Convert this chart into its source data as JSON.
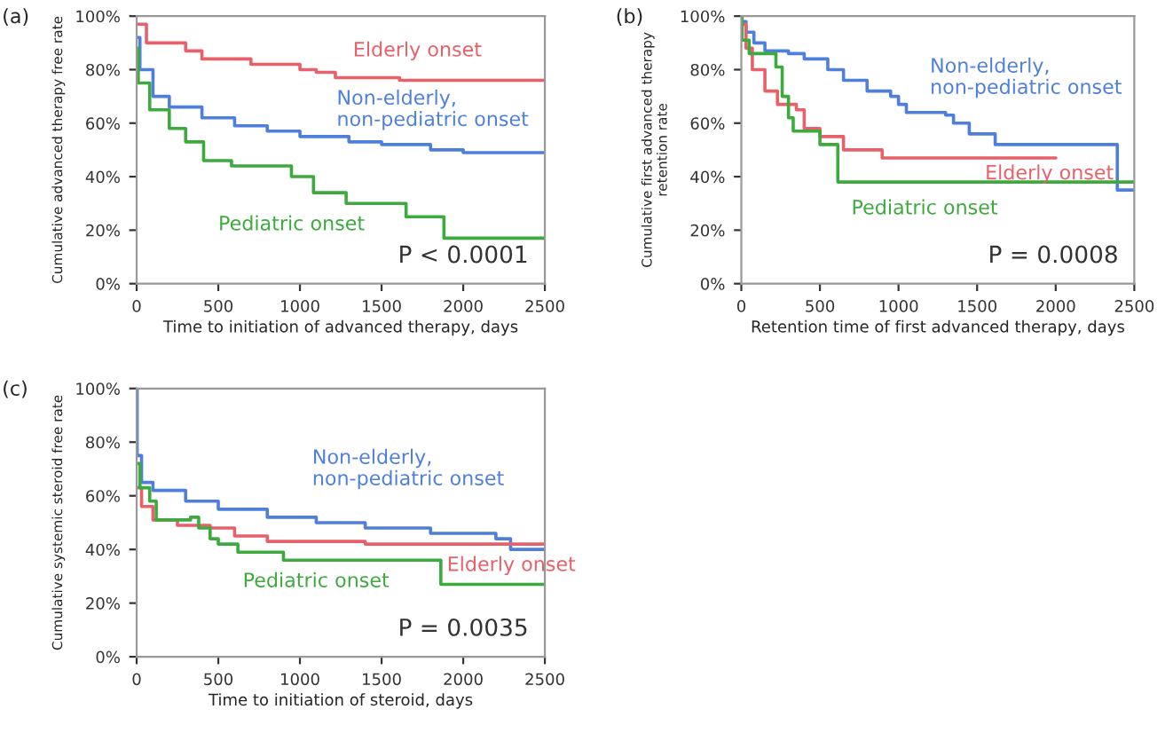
{
  "chart_data": [
    {
      "type": "step",
      "title": "(a)",
      "xlabel": "Time to initiation of advanced therapy, days",
      "ylabel": "Cumulative advanced therapy free rate",
      "annotations": [
        "P < 0.0001"
      ],
      "series": [
        {
          "name": "Elderly onset",
          "color": "#e8606a",
          "x": [
            0,
            60,
            300,
            400,
            700,
            1000,
            1100,
            1217,
            1610,
            2500
          ],
          "values": [
            97,
            90,
            87,
            84,
            82,
            80,
            79,
            77,
            76,
            76
          ]
        },
        {
          "name": "Non-elderly,\nnon-pediatric onset",
          "color": "#4f7fdc",
          "x": [
            0,
            20,
            100,
            200,
            400,
            600,
            800,
            1000,
            1300,
            1500,
            1800,
            2000,
            2500
          ],
          "values": [
            92,
            80,
            70,
            66,
            62,
            59,
            57,
            55,
            53,
            52,
            50,
            49,
            49
          ]
        },
        {
          "name": "Pediatric onset",
          "color": "#3caa3c",
          "x": [
            0,
            10,
            80,
            200,
            300,
            410,
            581,
            948,
            1083,
            1283,
            1650,
            1882,
            2500
          ],
          "values": [
            88,
            75,
            65,
            58,
            53,
            46,
            44,
            40,
            34,
            30,
            25,
            17,
            17
          ]
        }
      ],
      "xlim": [
        0,
        2500
      ],
      "ylim": [
        0,
        100
      ],
      "xticks": [
        0,
        500,
        1000,
        1500,
        2000,
        2500
      ],
      "yticks": [
        {
          "value": 0,
          "label": "0%"
        },
        {
          "value": 20,
          "label": "20%"
        },
        {
          "value": 40,
          "label": "40%"
        },
        {
          "value": 60,
          "label": "60%"
        },
        {
          "value": 80,
          "label": "80%"
        },
        {
          "value": 100,
          "label": "100%"
        }
      ]
    },
    {
      "type": "step",
      "title": "(b)",
      "xlabel": "Retention time of first advanced therapy, days",
      "ylabel": "Cumulative first advanced therapy\nretention rate",
      "annotations": [
        "P = 0.0008"
      ],
      "series": [
        {
          "name": "Non-elderly,\nnon-pediatric onset",
          "color": "#4f7fdc",
          "x": [
            0,
            30,
            80,
            150,
            300,
            400,
            550,
            650,
            800,
            950,
            1000,
            1050,
            1300,
            1350,
            1450,
            1615,
            2392,
            2500
          ],
          "values": [
            98,
            94,
            90,
            87,
            86,
            84,
            80,
            76,
            72,
            70,
            67,
            64,
            63,
            60,
            56,
            52,
            35,
            35
          ]
        },
        {
          "name": "Elderly onset",
          "color": "#e8606a",
          "x": [
            0,
            30,
            70,
            150,
            230,
            350,
            400,
            500,
            650,
            896,
            2001
          ],
          "values": [
            97,
            88,
            80,
            72,
            67,
            65,
            58,
            55,
            50,
            47,
            47
          ]
        },
        {
          "name": "Pediatric onset",
          "color": "#3caa3c",
          "x": [
            0,
            5,
            50,
            220,
            260,
            300,
            330,
            400,
            500,
            614,
            2500
          ],
          "values": [
            100,
            91,
            86,
            81,
            70,
            62,
            57,
            57,
            52,
            38,
            38
          ]
        }
      ],
      "xlim": [
        0,
        2500
      ],
      "ylim": [
        0,
        100
      ],
      "xticks": [
        0,
        500,
        1000,
        1500,
        2000,
        2500
      ],
      "yticks": [
        {
          "value": 0,
          "label": "0%"
        },
        {
          "value": 20,
          "label": "20%"
        },
        {
          "value": 40,
          "label": "40%"
        },
        {
          "value": 60,
          "label": "60%"
        },
        {
          "value": 80,
          "label": "80%"
        },
        {
          "value": 100,
          "label": "100%"
        }
      ]
    },
    {
      "type": "step",
      "title": "(c)",
      "xlabel": "Time to initiation of steroid, days",
      "ylabel": "Cumulative systemic steroid free rate",
      "annotations": [
        "P = 0.0035"
      ],
      "series": [
        {
          "name": "Non-elderly,\nnon-pediatric onset",
          "color": "#4f7fdc",
          "x": [
            0,
            3,
            30,
            100,
            300,
            500,
            800,
            1100,
            1400,
            1800,
            2200,
            2290,
            2500
          ],
          "values": [
            100,
            75,
            65,
            62,
            58,
            55,
            52,
            50,
            48,
            46,
            44,
            40,
            40
          ]
        },
        {
          "name": "Elderly onset",
          "color": "#e8606a",
          "x": [
            0,
            30,
            100,
            250,
            450,
            600,
            800,
            1400,
            2500
          ],
          "values": [
            63,
            56,
            51,
            49,
            48,
            45,
            43,
            42,
            42
          ]
        },
        {
          "name": "Pediatric onset",
          "color": "#3caa3c",
          "x": [
            0,
            20,
            80,
            120,
            330,
            380,
            450,
            500,
            620,
            899,
            1863,
            2500
          ],
          "values": [
            72,
            63,
            58,
            51,
            52,
            48,
            44,
            42,
            39,
            36,
            27,
            27
          ]
        }
      ],
      "xlim": [
        0,
        2500
      ],
      "ylim": [
        0,
        100
      ],
      "xticks": [
        0,
        500,
        1000,
        1500,
        2000,
        2500
      ],
      "yticks": [
        {
          "value": 0,
          "label": "0%"
        },
        {
          "value": 20,
          "label": "20%"
        },
        {
          "value": 40,
          "label": "40%"
        },
        {
          "value": 60,
          "label": "60%"
        },
        {
          "value": 80,
          "label": "80%"
        },
        {
          "value": 100,
          "label": "100%"
        }
      ]
    }
  ]
}
